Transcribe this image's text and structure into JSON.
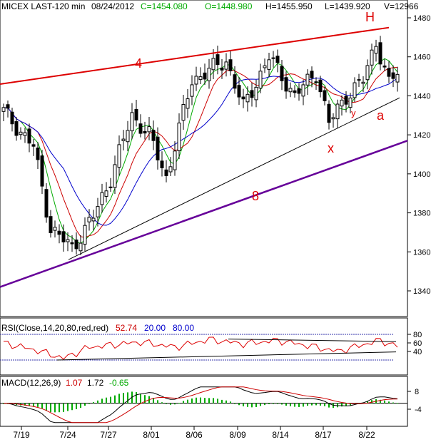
{
  "chart_data": [
    {
      "type": "candlestick",
      "header": {
        "symbol": "MICEX LAST-120 min",
        "date": "08/24/2012",
        "close": "C=1454.080",
        "open": "O=1448.980",
        "high": "H=1455.950",
        "low": "L=1439.920",
        "volume": "V=12966"
      },
      "ylim": [
        1330,
        1490
      ],
      "yticks": [
        "1480",
        "1460",
        "1440",
        "1420",
        "1400",
        "1380",
        "1360",
        "1340"
      ],
      "xticks": [
        "7/19",
        "7/24",
        "7/27",
        "8/01",
        "8/06",
        "8/09",
        "8/14",
        "8/17",
        "8/22"
      ],
      "annotations": [
        "H",
        "4",
        "a",
        "y",
        "x",
        "8"
      ],
      "anchors": [
        {
          "bar": 0,
          "price": 1432
        },
        {
          "bar": 7,
          "price": 1414
        },
        {
          "bar": 11,
          "price": 1372
        },
        {
          "bar": 16,
          "price": 1362
        },
        {
          "bar": 21,
          "price": 1378
        },
        {
          "bar": 25,
          "price": 1398
        },
        {
          "bar": 30,
          "price": 1430
        },
        {
          "bar": 34,
          "price": 1420
        },
        {
          "bar": 38,
          "price": 1398
        },
        {
          "bar": 44,
          "price": 1448
        },
        {
          "bar": 52,
          "price": 1458
        },
        {
          "bar": 56,
          "price": 1434
        },
        {
          "bar": 62,
          "price": 1460
        },
        {
          "bar": 68,
          "price": 1440
        },
        {
          "bar": 73,
          "price": 1452
        },
        {
          "bar": 76,
          "price": 1426
        },
        {
          "bar": 80,
          "price": 1440
        },
        {
          "bar": 84,
          "price": 1448
        },
        {
          "bar": 87,
          "price": 1468
        },
        {
          "bar": 90,
          "price": 1446
        },
        {
          "bar": 92,
          "price": 1452
        }
      ],
      "moving_average_colors": [
        "#00aa00",
        "#cc0000",
        "#0000cc"
      ]
    },
    {
      "type": "line",
      "title": "RSI(Close,14,20,80,red,red)",
      "values_text": [
        "52.74",
        "20.00",
        "80.00"
      ],
      "ylim": [
        10,
        90
      ],
      "yticks": [
        "80",
        "60",
        "40"
      ],
      "levels": [
        80,
        20
      ],
      "anchors": [
        {
          "bar": 0,
          "value": 60
        },
        {
          "bar": 8,
          "value": 42
        },
        {
          "bar": 14,
          "value": 24
        },
        {
          "bar": 20,
          "value": 50
        },
        {
          "bar": 26,
          "value": 56
        },
        {
          "bar": 32,
          "value": 62
        },
        {
          "bar": 40,
          "value": 50
        },
        {
          "bar": 48,
          "value": 68
        },
        {
          "bar": 56,
          "value": 58
        },
        {
          "bar": 64,
          "value": 66
        },
        {
          "bar": 72,
          "value": 52
        },
        {
          "bar": 78,
          "value": 40
        },
        {
          "bar": 84,
          "value": 56
        },
        {
          "bar": 88,
          "value": 66
        },
        {
          "bar": 92,
          "value": 52
        }
      ]
    },
    {
      "type": "line",
      "title": "MACD(12,26,9)",
      "values_text": [
        "1.07",
        "1.72",
        "-0.65"
      ],
      "ylim": [
        -14,
        12
      ],
      "yticks": [
        "8",
        "-4"
      ],
      "series": [
        {
          "name": "1.07",
          "color": "#cc0000"
        },
        {
          "name": "1.72",
          "color": "#000000"
        },
        {
          "name": "-0.65",
          "color": "#00aa00"
        }
      ]
    }
  ],
  "colors": {
    "rsi_line": "#dd0000",
    "rsi_level": "#3333aa",
    "resistance_line": "#dd0000",
    "support_line": "#660099",
    "channel_line": "#000000",
    "annotation": "#dd0000"
  }
}
